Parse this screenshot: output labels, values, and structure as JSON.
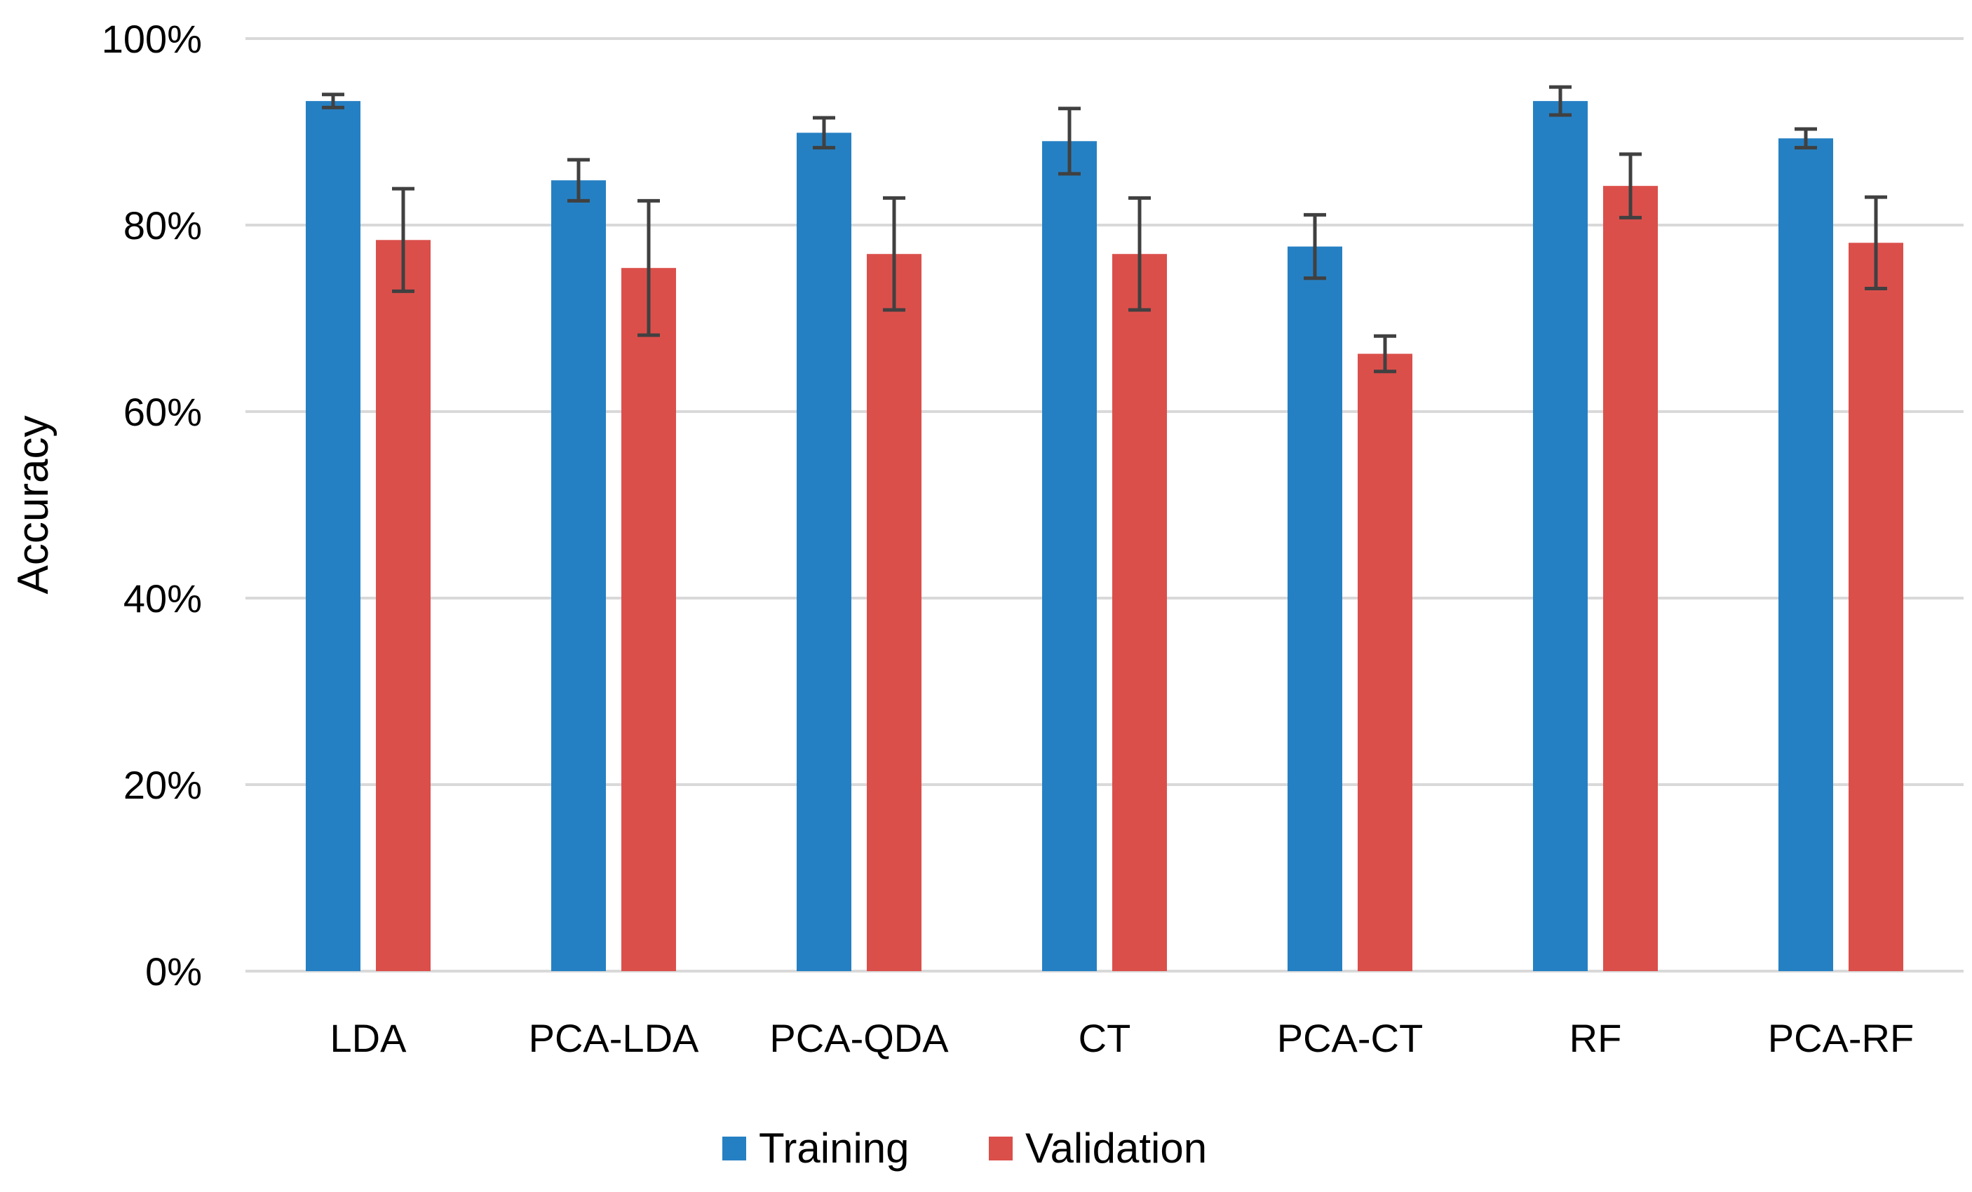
{
  "chart_data": {
    "type": "bar",
    "title": "",
    "xlabel": "",
    "ylabel": "Accuracy",
    "ylim": [
      0,
      100
    ],
    "y_tick_step": 20,
    "y_tick_suffix": "%",
    "grid": true,
    "legend_position": "bottom",
    "categories": [
      "LDA",
      "PCA-LDA",
      "PCA-QDA",
      "CT",
      "PCA-CT",
      "RF",
      "PCA-RF"
    ],
    "series": [
      {
        "name": "Training",
        "color": "#2580C3",
        "values": [
          93.3,
          84.8,
          89.9,
          89.0,
          77.7,
          93.3,
          89.3
        ],
        "errors": [
          0.7,
          2.2,
          1.6,
          3.5,
          3.4,
          1.5,
          1.0
        ]
      },
      {
        "name": "Validation",
        "color": "#DB4F4B",
        "values": [
          78.4,
          75.4,
          76.9,
          76.9,
          66.2,
          84.2,
          78.1
        ],
        "errors": [
          5.5,
          7.2,
          6.0,
          6.0,
          1.9,
          3.4,
          4.9
        ]
      }
    ],
    "error_bar_color": "#404040",
    "grid_color": "#D9D9D9"
  }
}
